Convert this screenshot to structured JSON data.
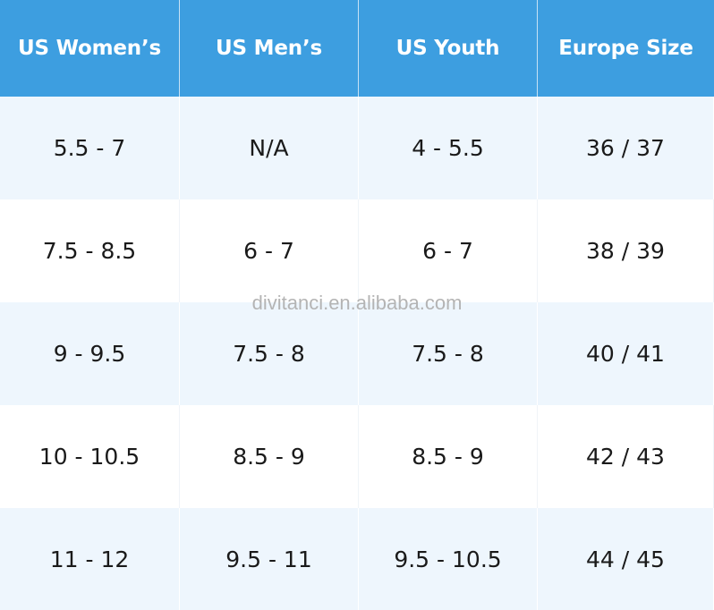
{
  "table": {
    "headers": [
      "US Women’s",
      "US Men’s",
      "US Youth",
      "Europe Size"
    ],
    "rows": [
      [
        "5.5 - 7",
        "N/A",
        "4 - 5.5",
        "36 / 37"
      ],
      [
        "7.5 - 8.5",
        "6 - 7",
        "6 - 7",
        "38 / 39"
      ],
      [
        "9 - 9.5",
        "7.5 - 8",
        "7.5 - 8",
        "40 / 41"
      ],
      [
        "10 - 10.5",
        "8.5 - 9",
        "8.5 - 9",
        "42 / 43"
      ],
      [
        "11 - 12",
        "9.5 - 11",
        "9.5 - 10.5",
        "44 / 45"
      ]
    ]
  },
  "watermark": "divitanci.en.alibaba.com",
  "colors": {
    "header_bg": "#3d9ee0",
    "header_text": "#ffffff",
    "row_alt_bg": "#eef6fd",
    "row_bg": "#ffffff",
    "cell_text": "#1a1a1a"
  }
}
